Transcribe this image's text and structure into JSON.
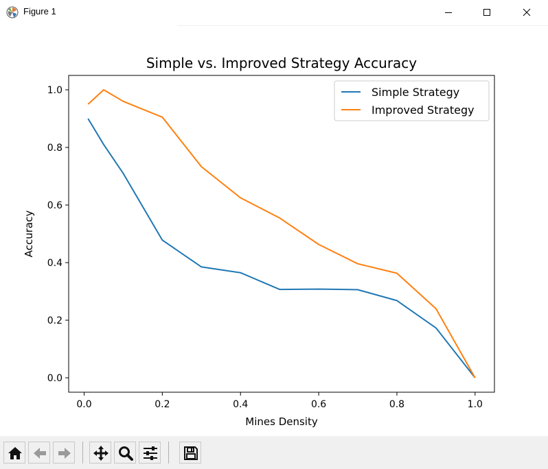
{
  "window": {
    "title": "Figure 1",
    "icons": {
      "app": "matplotlib-logo-icon",
      "minimize": "minimize-icon",
      "maximize": "maximize-icon",
      "close": "close-icon"
    }
  },
  "toolbar": {
    "tools": [
      {
        "name": "home-icon",
        "label": "Home"
      },
      {
        "name": "back-icon",
        "label": "Back"
      },
      {
        "name": "forward-icon",
        "label": "Forward"
      },
      {
        "name": "pan-icon",
        "label": "Pan"
      },
      {
        "name": "zoom-icon",
        "label": "Zoom"
      },
      {
        "name": "configure-subplots-icon",
        "label": "Subplots"
      },
      {
        "name": "save-icon",
        "label": "Save"
      }
    ]
  },
  "chart_data": {
    "type": "line",
    "title": "Simple vs. Improved Strategy Accuracy",
    "xlabel": "Mines Density",
    "ylabel": "Accuracy",
    "xlim": [
      -0.0395,
      1.0495
    ],
    "ylim": [
      -0.05,
      1.05
    ],
    "xticks": [
      0.0,
      0.2,
      0.4,
      0.6,
      0.8,
      1.0
    ],
    "xtick_labels": [
      "0.0",
      "0.2",
      "0.4",
      "0.6",
      "0.8",
      "1.0"
    ],
    "yticks": [
      0.0,
      0.2,
      0.4,
      0.6,
      0.8,
      1.0
    ],
    "ytick_labels": [
      "0.0",
      "0.2",
      "0.4",
      "0.6",
      "0.8",
      "1.0"
    ],
    "grid": false,
    "legend": "top-right",
    "series": [
      {
        "name": "Simple Strategy",
        "color": "#1f77b4",
        "x": [
          0.01,
          0.05,
          0.1,
          0.2,
          0.3,
          0.4,
          0.5,
          0.6,
          0.7,
          0.8,
          0.9,
          1.0
        ],
        "y": [
          0.9,
          0.81,
          0.71,
          0.478,
          0.385,
          0.365,
          0.307,
          0.308,
          0.306,
          0.268,
          0.173,
          0.0
        ]
      },
      {
        "name": "Improved Strategy",
        "color": "#ff7f0e",
        "x": [
          0.01,
          0.05,
          0.1,
          0.2,
          0.3,
          0.4,
          0.5,
          0.6,
          0.7,
          0.8,
          0.9,
          1.0
        ],
        "y": [
          0.95,
          1.0,
          0.96,
          0.905,
          0.733,
          0.625,
          0.555,
          0.463,
          0.396,
          0.363,
          0.24,
          0.0
        ]
      }
    ]
  }
}
